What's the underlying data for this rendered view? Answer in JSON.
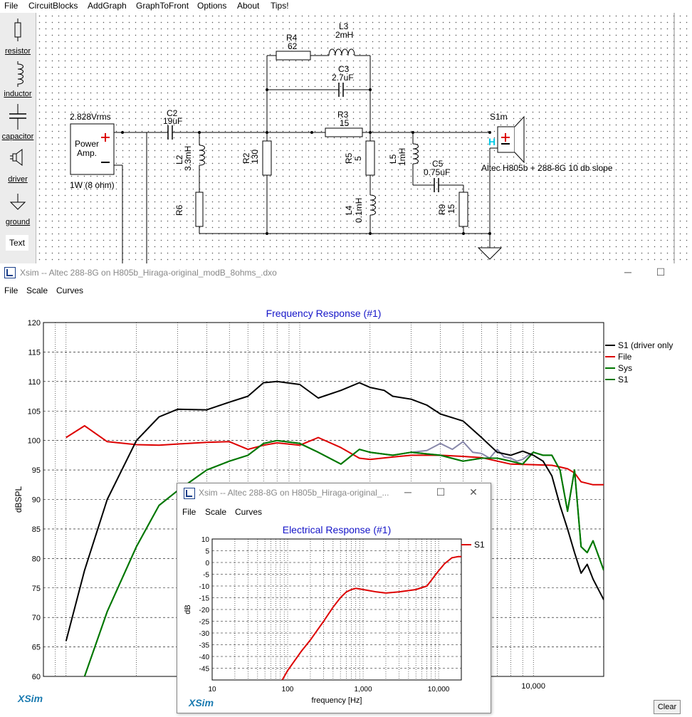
{
  "menubar": {
    "file": "File",
    "circuitblocks": "CircuitBlocks",
    "addgraph": "AddGraph",
    "graphtofront": "GraphToFront",
    "options": "Options",
    "about": "About",
    "tips": "Tips!"
  },
  "palette": {
    "resistor": "resistor",
    "inductor": "inductor",
    "capacitor": "capacitor",
    "driver": "driver",
    "ground": "ground",
    "text": "Text"
  },
  "schematic": {
    "source_voltage": "2.828Vrms",
    "amp_line1": "Power",
    "amp_line2": "Amp.",
    "amp_spec": "1W (8 ohm)",
    "c2_name": "C2",
    "c2_val": "19uF",
    "l2_name": "L2",
    "l2_val": "3.3mH",
    "r6_name": "R6",
    "r2_name": "R2",
    "r2_val": "130",
    "r4_name": "R4",
    "r4_val": "62",
    "l3_name": "L3",
    "l3_val": "2mH",
    "c3_name": "C3",
    "c3_val": "2.7uF",
    "r3_name": "R3",
    "r3_val": "15",
    "r5_name": "R5",
    "r5_val": "5",
    "l4_name": "L4",
    "l4_val": "0.1mH",
    "l5_name": "L5",
    "l5_val": "1mH",
    "c5_name": "C5",
    "c5_val": "0.75uF",
    "r9_name": "R9",
    "r9_val": "15",
    "driver_name": "S1m",
    "driver_desc": "Altec H805b + 288-8G 10 db slope",
    "driver_h": "H"
  },
  "freq_window": {
    "title": "Xsim -- Altec 288-8G on H805b_Hiraga-original_modB_8ohms_.dxo",
    "menu": {
      "file": "File",
      "scale": "Scale",
      "curves": "Curves"
    },
    "brand": "XSim",
    "clear": "Clear"
  },
  "elec_window": {
    "title": "Xsim -- Altec 288-8G on H805b_Hiraga-original_...",
    "menu": {
      "file": "File",
      "scale": "Scale",
      "curves": "Curves"
    },
    "brand": "XSim"
  },
  "chart_data": [
    {
      "type": "line",
      "title": "Frequency Response (#1)",
      "ylabel": "dBSPL",
      "xlabel": "",
      "x_scale": "log",
      "ylim": [
        60,
        120
      ],
      "yticks": [
        60,
        65,
        70,
        75,
        80,
        85,
        90,
        95,
        100,
        105,
        110,
        115,
        120
      ],
      "xtick_labels": [
        "10,000"
      ],
      "legend_position": "right",
      "colors": {
        "S1 (driver only": "#000000",
        "File": "#dd0000",
        "Sys": "#007700",
        "S1": "#007700",
        "extra": "#8888aa"
      },
      "series": [
        {
          "name": "S1 (driver only",
          "x": [
            100,
            120,
            150,
            200,
            250,
            300,
            400,
            500,
            600,
            700,
            800,
            1000,
            1200,
            1500,
            1800,
            2000,
            2300,
            2500,
            3000,
            3500,
            4000,
            5000,
            6000,
            7000,
            8000,
            9000,
            10000,
            11000,
            12000,
            13000,
            14000,
            15000,
            16000,
            17000,
            18000,
            20000
          ],
          "y": [
            66,
            78,
            90,
            100,
            104,
            105.3,
            105.2,
            106.5,
            107.5,
            109.8,
            110,
            109.5,
            107.2,
            108.5,
            109.8,
            109,
            108.5,
            107.5,
            107,
            106,
            104.5,
            103.3,
            100.5,
            98,
            97.5,
            98.2,
            97.5,
            96.5,
            94,
            89,
            85,
            81,
            77.5,
            79,
            76.5,
            73
          ]
        },
        {
          "name": "File",
          "x": [
            100,
            120,
            150,
            200,
            250,
            300,
            400,
            500,
            600,
            700,
            800,
            1000,
            1200,
            1500,
            1800,
            2000,
            2500,
            3000,
            4000,
            5000,
            6000,
            8000,
            10000,
            12000,
            13000,
            14000,
            15000,
            16000,
            18000,
            20000
          ],
          "y": [
            100.5,
            102.5,
            99.8,
            99.3,
            99.2,
            99.4,
            99.7,
            99.8,
            98.5,
            99.2,
            99.6,
            99.2,
            100.5,
            98.8,
            97,
            96.8,
            97.2,
            97.5,
            97.5,
            97.3,
            97.1,
            96,
            95.9,
            95.8,
            95.5,
            95.2,
            94.5,
            93,
            92.5,
            92.5
          ]
        },
        {
          "name": "Sys",
          "x": [
            120,
            150,
            200,
            250,
            300,
            400,
            500,
            600,
            700,
            800,
            1000,
            1200,
            1500,
            1800,
            2000,
            2500,
            3000,
            4000,
            5000,
            6000,
            7000,
            8000,
            9000,
            10000,
            11000,
            12000,
            13000,
            14000,
            15000,
            16000,
            17000,
            18000,
            20000
          ],
          "y": [
            60,
            71,
            82,
            89,
            91.5,
            95,
            96.5,
            97.5,
            99.5,
            100,
            99.5,
            98,
            96,
            98.5,
            98,
            97.5,
            98,
            97.5,
            96.5,
            97,
            97,
            96.5,
            96,
            98,
            97.5,
            97.5,
            95,
            88,
            95,
            82,
            81,
            83,
            78
          ]
        },
        {
          "name": "S1",
          "x": [
            120,
            150,
            200,
            250,
            300,
            400,
            500,
            600,
            700,
            800,
            1000,
            1200,
            1500,
            1800,
            2000,
            2500,
            3000,
            4000,
            5000,
            6000,
            7000,
            8000,
            9000,
            10000,
            11000,
            12000,
            13000,
            14000,
            15000,
            16000,
            17000,
            18000,
            20000
          ],
          "y": [
            60,
            71,
            82,
            89,
            91.5,
            95,
            96.5,
            97.5,
            99.5,
            100,
            99.5,
            98,
            96,
            98.5,
            98,
            97.5,
            98,
            97.5,
            96.5,
            97,
            97,
            96.5,
            96,
            98,
            97.5,
            97.5,
            95,
            88,
            95,
            82,
            81,
            83,
            78
          ]
        },
        {
          "name": "",
          "x": [
            3000,
            3500,
            4000,
            4500,
            5000,
            5500,
            6000,
            6500,
            7000,
            7500,
            8000,
            8500,
            9000,
            9500,
            10000
          ],
          "y": [
            98,
            98.3,
            99.5,
            98.5,
            99.8,
            98,
            97.8,
            97,
            98.5,
            97.2,
            97,
            96.5,
            96.8,
            97.5,
            98
          ]
        }
      ]
    },
    {
      "type": "line",
      "title": "Electrical Response (#1)",
      "ylabel": "dB",
      "xlabel": "frequency [Hz]",
      "x_scale": "log",
      "xlim": [
        10,
        20000
      ],
      "ylim": [
        -50,
        10
      ],
      "yticks": [
        10,
        5,
        0,
        -5,
        -10,
        -15,
        -20,
        -25,
        -30,
        -35,
        -40,
        -45
      ],
      "xtick_labels": [
        "10",
        "100",
        "1,000",
        "10,000"
      ],
      "legend_position": "right",
      "colors": {
        "S1": "#dd0000"
      },
      "series": [
        {
          "name": "S1",
          "x": [
            85,
            100,
            150,
            200,
            300,
            400,
            500,
            600,
            700,
            800,
            1000,
            1500,
            2000,
            3000,
            5000,
            7000,
            10000,
            12000,
            15000,
            18000,
            20000
          ],
          "y": [
            -50,
            -46,
            -38,
            -33,
            -25,
            -19,
            -15,
            -12.5,
            -11.5,
            -11,
            -11.5,
            -12.5,
            -13,
            -12.5,
            -11.5,
            -10,
            -3.5,
            -0.5,
            2,
            2.5,
            2.5
          ]
        }
      ]
    }
  ]
}
